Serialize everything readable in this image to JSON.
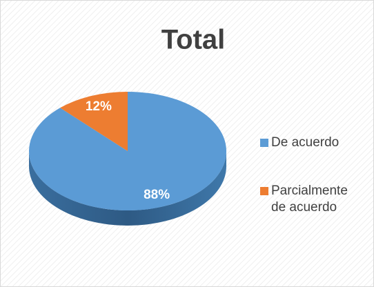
{
  "chart_data": {
    "type": "pie",
    "title": "Total",
    "categories": [
      "De acuerdo",
      "Parcialmente de acuerdo"
    ],
    "values": [
      88,
      12
    ],
    "value_labels": [
      "88%",
      "12%"
    ],
    "colors": [
      "#5b9bd5",
      "#ed7d31"
    ],
    "legend": "right"
  }
}
